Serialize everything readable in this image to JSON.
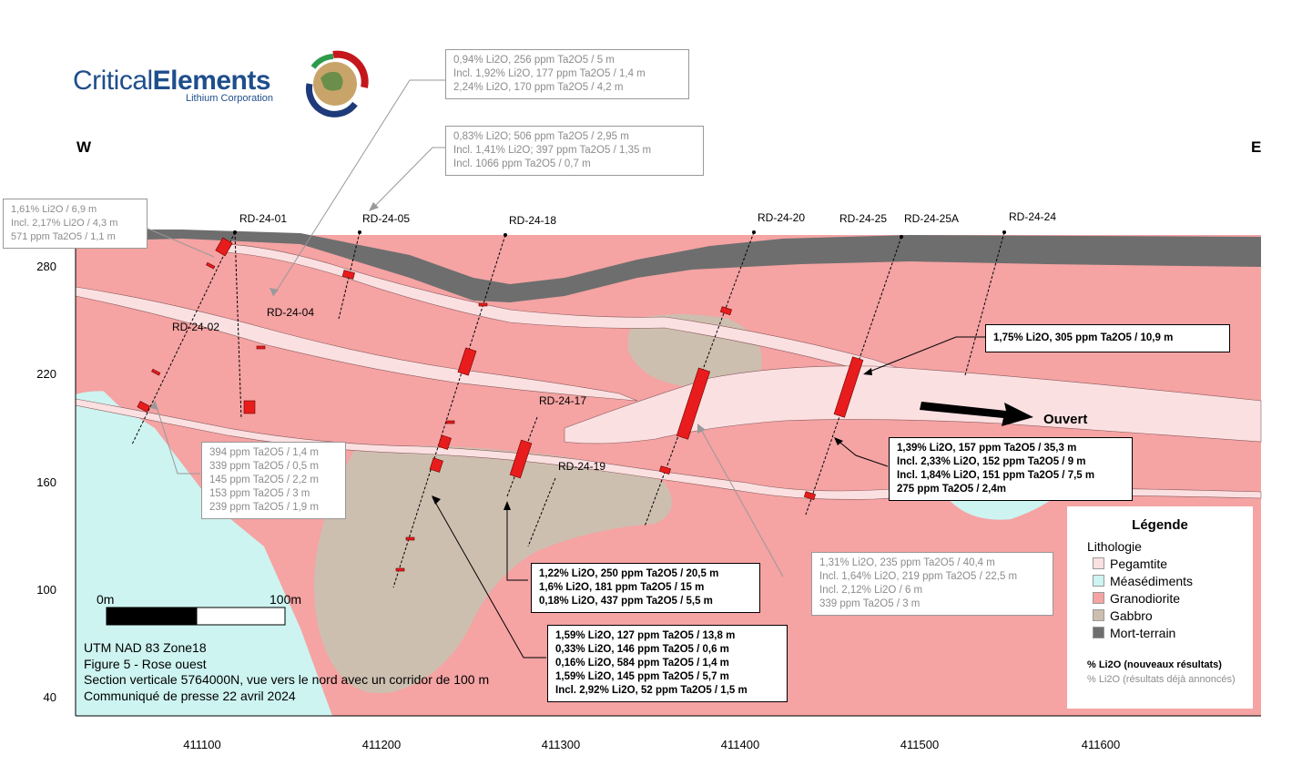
{
  "logo": {
    "word1": "Critical",
    "word2": "Elements",
    "tagline": "Lithium Corporation"
  },
  "directions": {
    "west": "W",
    "east": "E"
  },
  "y_axis": {
    "ticks": [
      "280",
      "220",
      "160",
      "100",
      "40"
    ]
  },
  "x_axis": {
    "ticks": [
      "411100",
      "411200",
      "411300",
      "411400",
      "411500",
      "411600"
    ]
  },
  "drillholes": {
    "rd2401": "RD-24-01",
    "rd2402": "RD-24-02",
    "rd2404": "RD-24-04",
    "rd2405": "RD-24-05",
    "rd2417": "RD-24-17",
    "rd2418": "RD-24-18",
    "rd2419": "RD-24-19",
    "rd2420": "RD-24-20",
    "rd2425": "RD-24-25",
    "rd2425a": "RD-24-25A",
    "rd2424": "RD-24-24"
  },
  "callouts": {
    "top_a": [
      "0,94% Li2O, 256 ppm Ta2O5 / 5 m",
      "Incl. 1,92% Li2O, 177 ppm Ta2O5 / 1,4 m",
      "2,24% Li2O, 170 ppm Ta2O5 / 4,2 m"
    ],
    "top_b": [
      "0,83% Li2O; 506 ppm Ta2O5 /  2,95 m",
      "Incl. 1,41% Li2O; 397 ppm Ta2O5 /  1,35 m",
      "Incl. 1066 ppm Ta2O5 / 0,7 m"
    ],
    "left": [
      "1,61% Li2O / 6,9 m",
      "Incl. 2,17% Li2O / 4,3 m",
      "571 ppm Ta2O5 / 1,1 m"
    ],
    "rd2425": [
      "1,75% Li2O, 305 ppm Ta2O5 / 10,9 m"
    ],
    "rd2424": [
      "1,39% Li2O, 157 ppm Ta2O5 / 35,3 m",
      "Incl. 2,33% Li2O, 152 ppm Ta2O5 / 9 m",
      "Incl. 1,84% Li2O, 151 ppm Ta2O5 / 7,5 m",
      "275 ppm Ta2O5 / 2,4m"
    ],
    "rd2402": [
      "394 ppm Ta2O5 / 1,4 m",
      "339 ppm Ta2O5 / 0,5 m",
      "145 ppm Ta2O5 / 2,2 m",
      "153 ppm Ta2O5 / 3 m",
      "239 ppm Ta2O5 / 1,9 m"
    ],
    "rd2420": [
      "1,31% Li2O, 235 ppm Ta2O5 / 40,4 m",
      "Incl. 1,64% Li2O, 219 ppm Ta2O5 / 22,5 m",
      "Incl. 2,12% Li2O / 6 m",
      "339 ppm Ta2O5 / 3 m"
    ],
    "rd2417": [
      "1,22% Li2O, 250 ppm Ta2O5 / 20,5 m",
      "1,6% Li2O, 181 ppm Ta2O5 / 15 m",
      "0,18% Li2O, 437 ppm Ta2O5 / 5,5 m"
    ],
    "rd2418": [
      "1,59% Li2O, 127 ppm Ta2O5 / 13,8 m",
      "0,33% Li2O, 146 ppm Ta2O5 / 0,6 m",
      "0,16% Li2O, 584 ppm Ta2O5 / 1,4 m",
      "1,59% Li2O, 145 ppm Ta2O5 / 5,7 m",
      "Incl. 2,92% Li2O, 52 ppm Ta2O5 / 1,5 m"
    ]
  },
  "open_label": "Ouvert",
  "scale_bar": {
    "start": "0m",
    "end": "100m"
  },
  "meta": {
    "line1": "UTM NAD 83 Zone18",
    "line2": "Figure 5 - Rose ouest",
    "line3": "Section verticale 5764000N, vue vers le nord avec un corridor de 100 m",
    "line4": "Communiqué de presse 22 avril 2024"
  },
  "legend": {
    "title": "Légende",
    "subtitle": "Lithologie",
    "items": [
      {
        "label": "Pegamtite",
        "color": "#fbe0e2"
      },
      {
        "label": "Méasédiments",
        "color": "#cdf4f1"
      },
      {
        "label": "Granodiorite",
        "color": "#f5a3a3"
      },
      {
        "label": "Gabbro",
        "color": "#cdbfb0"
      },
      {
        "label": "Mort-terrain",
        "color": "#6e6e6e"
      }
    ],
    "note_new": "% Li2O (nouveaux résultats)",
    "note_old": "% Li2O (résultats déjà annoncés)"
  },
  "colors": {
    "pegmatite": "#fbe0e2",
    "metasediments": "#cdf4f1",
    "granodiorite": "#f5a3a3",
    "gabbro": "#cdbfb0",
    "overburden": "#6e6e6e",
    "intercept": "#e81c1c"
  }
}
